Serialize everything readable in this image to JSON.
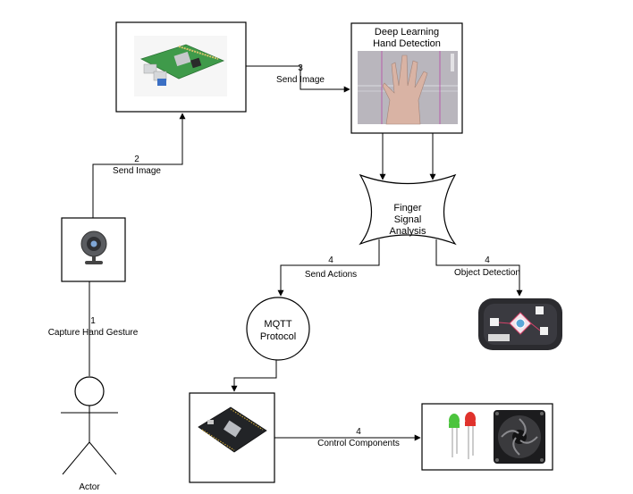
{
  "nodes": {
    "deep_learning": {
      "line1": "Deep Learning",
      "line2": "Hand Detection"
    },
    "finger_signal": {
      "line1": "Finger",
      "line2": "Signal",
      "line3": "Analysis"
    },
    "mqtt": {
      "line1": "MQTT",
      "line2": "Protocol"
    },
    "actor": {
      "label": "Actor"
    }
  },
  "edges": {
    "capture": {
      "num": "1",
      "label": "Capture Hand Gesture"
    },
    "send_image_pi": {
      "num": "2",
      "label": "Send Image"
    },
    "send_image_dl": {
      "num": "3",
      "label": "Send Image"
    },
    "send_actions": {
      "num": "4",
      "label": "Send Actions"
    },
    "object_detection": {
      "num": "4",
      "label": "Object Detection"
    },
    "control_components": {
      "num": "4",
      "label": "Control Components"
    }
  },
  "colors": {
    "line": "#000000",
    "pi_board": "#3f9a4a",
    "led_green": "#4cc43e",
    "led_red": "#e0322c",
    "hand_bg": "#b9b6bd",
    "obj_panel": "#2b2b2f"
  }
}
